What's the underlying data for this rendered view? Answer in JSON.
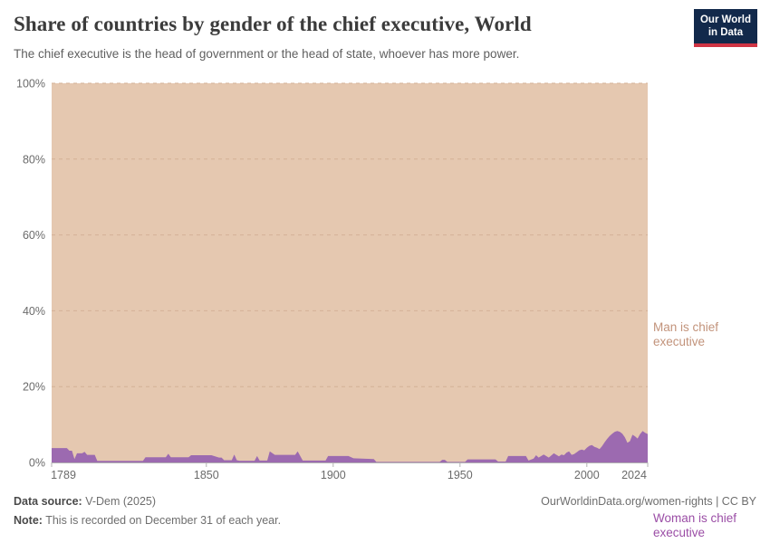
{
  "header": {
    "title": "Share of countries by gender of the chief executive, World",
    "subtitle": "The chief executive is the head of government or the head of state, whoever has more power.",
    "logo": {
      "line1": "Our World",
      "line2": "in Data"
    }
  },
  "chart_data": {
    "type": "area",
    "stacked": true,
    "title": "Share of countries by gender of the chief executive, World",
    "xlabel": "",
    "ylabel": "",
    "x_domain": [
      1789,
      2024
    ],
    "y_domain": [
      0,
      100
    ],
    "x_ticks": [
      1789,
      1850,
      1900,
      1950,
      2000,
      2024
    ],
    "y_ticks": [
      0,
      20,
      40,
      60,
      80,
      100
    ],
    "y_tick_suffix": "%",
    "grid": "dashed horizontal",
    "legend_position": "right-edge-labels",
    "colors": {
      "grid": "#d4b196",
      "axis": "#b3b3b3",
      "tick_text": "#6b6b6b"
    },
    "series": [
      {
        "name": "Man is chief executive",
        "color": "#e5c8b0",
        "label_color": "#c2937b",
        "stack_remainder_to": 100
      },
      {
        "name": "Woman is chief executive",
        "color": "#9c6ab0",
        "label_color": "#9b4ea6",
        "points": [
          [
            1789,
            3.8
          ],
          [
            1795,
            3.8
          ],
          [
            1796,
            3.1
          ],
          [
            1797,
            3.1
          ],
          [
            1798,
            0.9
          ],
          [
            1799,
            2.4
          ],
          [
            1801,
            2.4
          ],
          [
            1802,
            2.8
          ],
          [
            1803,
            2.0
          ],
          [
            1806,
            2.0
          ],
          [
            1807,
            0.4
          ],
          [
            1825,
            0.4
          ],
          [
            1826,
            1.35
          ],
          [
            1834,
            1.35
          ],
          [
            1835,
            2.3
          ],
          [
            1836,
            1.35
          ],
          [
            1843,
            1.35
          ],
          [
            1844,
            1.9
          ],
          [
            1852,
            1.9
          ],
          [
            1855,
            1.3
          ],
          [
            1856,
            1.3
          ],
          [
            1857,
            0.6
          ],
          [
            1860,
            0.6
          ],
          [
            1861,
            2.1
          ],
          [
            1862,
            0.6
          ],
          [
            1863,
            0.45
          ],
          [
            1869,
            0.45
          ],
          [
            1870,
            1.7
          ],
          [
            1871,
            0.5
          ],
          [
            1874,
            0.5
          ],
          [
            1875,
            2.9
          ],
          [
            1877,
            2.0
          ],
          [
            1885,
            2.0
          ],
          [
            1886,
            2.9
          ],
          [
            1888,
            0.5
          ],
          [
            1897,
            0.5
          ],
          [
            1898,
            1.7
          ],
          [
            1906,
            1.7
          ],
          [
            1908,
            1.1
          ],
          [
            1916,
            0.9
          ],
          [
            1917,
            0.15
          ],
          [
            1942,
            0.15
          ],
          [
            1943,
            0.7
          ],
          [
            1944,
            0.7
          ],
          [
            1945,
            0.15
          ],
          [
            1952,
            0.15
          ],
          [
            1953,
            0.8
          ],
          [
            1964,
            0.8
          ],
          [
            1965,
            0.25
          ],
          [
            1968,
            0.25
          ],
          [
            1969,
            1.7
          ],
          [
            1976,
            1.7
          ],
          [
            1977,
            0.5
          ],
          [
            1979,
            1.0
          ],
          [
            1980,
            1.9
          ],
          [
            1981,
            1.3
          ],
          [
            1983,
            2.1
          ],
          [
            1985,
            1.3
          ],
          [
            1987,
            2.4
          ],
          [
            1989,
            1.6
          ],
          [
            1990,
            2.1
          ],
          [
            1991,
            1.9
          ],
          [
            1992,
            2.6
          ],
          [
            1993,
            2.9
          ],
          [
            1994,
            2.0
          ],
          [
            1995,
            2.2
          ],
          [
            1996,
            2.7
          ],
          [
            1997,
            3.2
          ],
          [
            1998,
            3.4
          ],
          [
            1999,
            3.2
          ],
          [
            2000,
            3.9
          ],
          [
            2001,
            4.4
          ],
          [
            2002,
            4.6
          ],
          [
            2003,
            4.1
          ],
          [
            2004,
            3.9
          ],
          [
            2005,
            3.5
          ],
          [
            2006,
            4.3
          ],
          [
            2007,
            5.3
          ],
          [
            2008,
            6.2
          ],
          [
            2009,
            7.0
          ],
          [
            2010,
            7.6
          ],
          [
            2011,
            8.1
          ],
          [
            2012,
            8.3
          ],
          [
            2013,
            8.1
          ],
          [
            2014,
            7.6
          ],
          [
            2015,
            6.6
          ],
          [
            2016,
            5.2
          ],
          [
            2017,
            5.6
          ],
          [
            2018,
            7.3
          ],
          [
            2019,
            6.9
          ],
          [
            2020,
            6.3
          ],
          [
            2021,
            7.5
          ],
          [
            2022,
            8.3
          ],
          [
            2023,
            7.8
          ],
          [
            2024,
            7.5
          ]
        ]
      }
    ]
  },
  "footer": {
    "datasource_label": "Data source:",
    "datasource": "V-Dem (2025)",
    "note_label": "Note:",
    "note": "This is recorded on December 31 of each year.",
    "link": "OurWorldinData.org/women-rights | CC BY"
  }
}
